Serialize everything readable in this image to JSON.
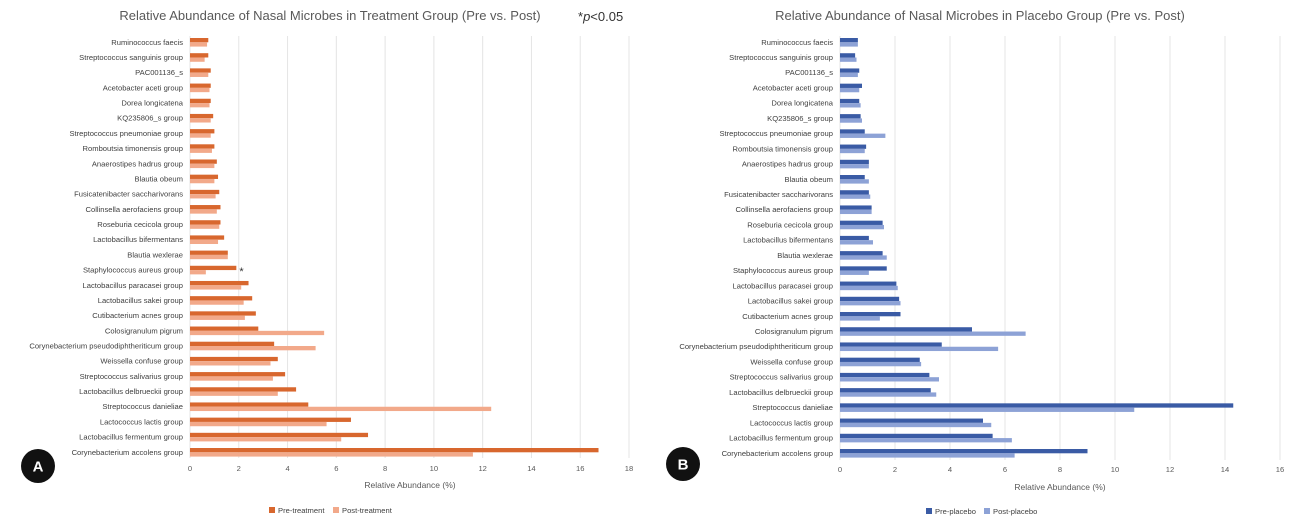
{
  "figure": {
    "significance_note_prefix": "*",
    "significance_note_p": "p",
    "significance_note_value": "<0.05"
  },
  "chart_data": [
    {
      "panel": "A",
      "type": "bar",
      "orientation": "horizontal",
      "title": "Relative Abundance of Nasal Microbes in Treatment Group (Pre vs. Post)",
      "xlabel": "Relative Abundance (%)",
      "xlim": [
        0,
        18
      ],
      "xticks": [
        0,
        2,
        4,
        6,
        8,
        10,
        12,
        14,
        16,
        18
      ],
      "grid": "vertical",
      "legend": "bottom",
      "categories": [
        "Ruminococcus faecis",
        "Streptococcus sanguinis group",
        "PAC001136_s",
        "Acetobacter aceti group",
        "Dorea longicatena",
        "KQ235806_s group",
        "Streptococcus pneumoniae group",
        "Romboutsia timonensis group",
        "Anaerostipes hadrus group",
        "Blautia obeum",
        "Fusicatenibacter saccharivorans",
        "Collinsella aerofaciens group",
        "Roseburia cecicola group",
        "Lactobacillus bifermentans",
        "Blautia wexlerae",
        "Staphylococcus aureus group",
        "Lactobacillus paracasei group",
        "Lactobacillus sakei group",
        "Cutibacterium acnes group",
        "Colosigranulum pigrum",
        "Corynebacterium pseudodiphtheriticum group",
        "Weissella confuse group",
        "Streptococcus salivarius group",
        "Lactobacillus delbrueckii group",
        "Streptococcus danieliae",
        "Lactococcus lactis group",
        "Lactobacillus fermentum group",
        "Corynebacterium accolens group"
      ],
      "series": [
        {
          "name": "Pre-treatment",
          "color": "#d8672e",
          "values": [
            0.75,
            0.75,
            0.85,
            0.85,
            0.85,
            0.95,
            1.0,
            1.0,
            1.1,
            1.15,
            1.2,
            1.25,
            1.25,
            1.4,
            1.55,
            1.9,
            2.4,
            2.55,
            2.7,
            2.8,
            3.45,
            3.6,
            3.9,
            4.35,
            4.85,
            6.6,
            7.3,
            16.75
          ]
        },
        {
          "name": "Post-treatment",
          "color": "#f2a98a",
          "values": [
            0.7,
            0.6,
            0.75,
            0.8,
            0.8,
            0.85,
            0.85,
            0.9,
            1.0,
            1.0,
            1.05,
            1.1,
            1.2,
            1.15,
            1.55,
            0.65,
            2.1,
            2.2,
            2.25,
            5.5,
            5.15,
            3.3,
            3.4,
            3.6,
            12.35,
            5.6,
            6.2,
            11.6
          ]
        }
      ],
      "annotations": [
        {
          "category": "Staphylococcus aureus group",
          "text": "*"
        }
      ]
    },
    {
      "panel": "B",
      "type": "bar",
      "orientation": "horizontal",
      "title": "Relative Abundance of Nasal Microbes in Placebo Group (Pre vs. Post)",
      "xlabel": "Relative Abundance (%)",
      "xlim": [
        0,
        16
      ],
      "xticks": [
        0,
        2,
        4,
        6,
        8,
        10,
        12,
        14,
        16
      ],
      "grid": "vertical",
      "legend": "bottom",
      "categories": [
        "Ruminococcus faecis",
        "Streptococcus sanguinis group",
        "PAC001136_s",
        "Acetobacter aceti group",
        "Dorea longicatena",
        "KQ235806_s group",
        "Streptococcus pneumoniae group",
        "Romboutsia timonensis group",
        "Anaerostipes hadrus group",
        "Blautia obeum",
        "Fusicatenibacter saccharivorans",
        "Collinsella aerofaciens group",
        "Roseburia cecicola group",
        "Lactobacillus bifermentans",
        "Blautia wexlerae",
        "Staphylococcus aureus group",
        "Lactobacillus paracasei group",
        "Lactobacillus sakei group",
        "Cutibacterium acnes group",
        "Colosigranulum pigrum",
        "Corynebacterium pseudodiphtheriticum group",
        "Weissella confuse group",
        "Streptococcus salivarius group",
        "Lactobacillus delbrueckii group",
        "Streptococcus danieliae",
        "Lactococcus lactis group",
        "Lactobacillus fermentum group",
        "Corynebacterium accolens group"
      ],
      "series": [
        {
          "name": "Pre-placebo",
          "color": "#3a5ba5",
          "values": [
            0.65,
            0.55,
            0.7,
            0.8,
            0.7,
            0.75,
            0.9,
            0.95,
            1.05,
            0.9,
            1.05,
            1.15,
            1.55,
            1.05,
            1.55,
            1.7,
            2.05,
            2.15,
            2.2,
            4.8,
            3.7,
            2.9,
            3.25,
            3.3,
            14.3,
            5.2,
            5.55,
            9.0
          ]
        },
        {
          "name": "Post-placebo",
          "color": "#8da2d6",
          "values": [
            0.65,
            0.6,
            0.65,
            0.7,
            0.75,
            0.8,
            1.65,
            0.9,
            1.05,
            1.05,
            1.1,
            1.15,
            1.6,
            1.2,
            1.7,
            1.05,
            2.1,
            2.2,
            1.45,
            6.75,
            5.75,
            2.95,
            3.6,
            3.5,
            10.7,
            5.5,
            6.25,
            6.35
          ]
        }
      ]
    }
  ]
}
